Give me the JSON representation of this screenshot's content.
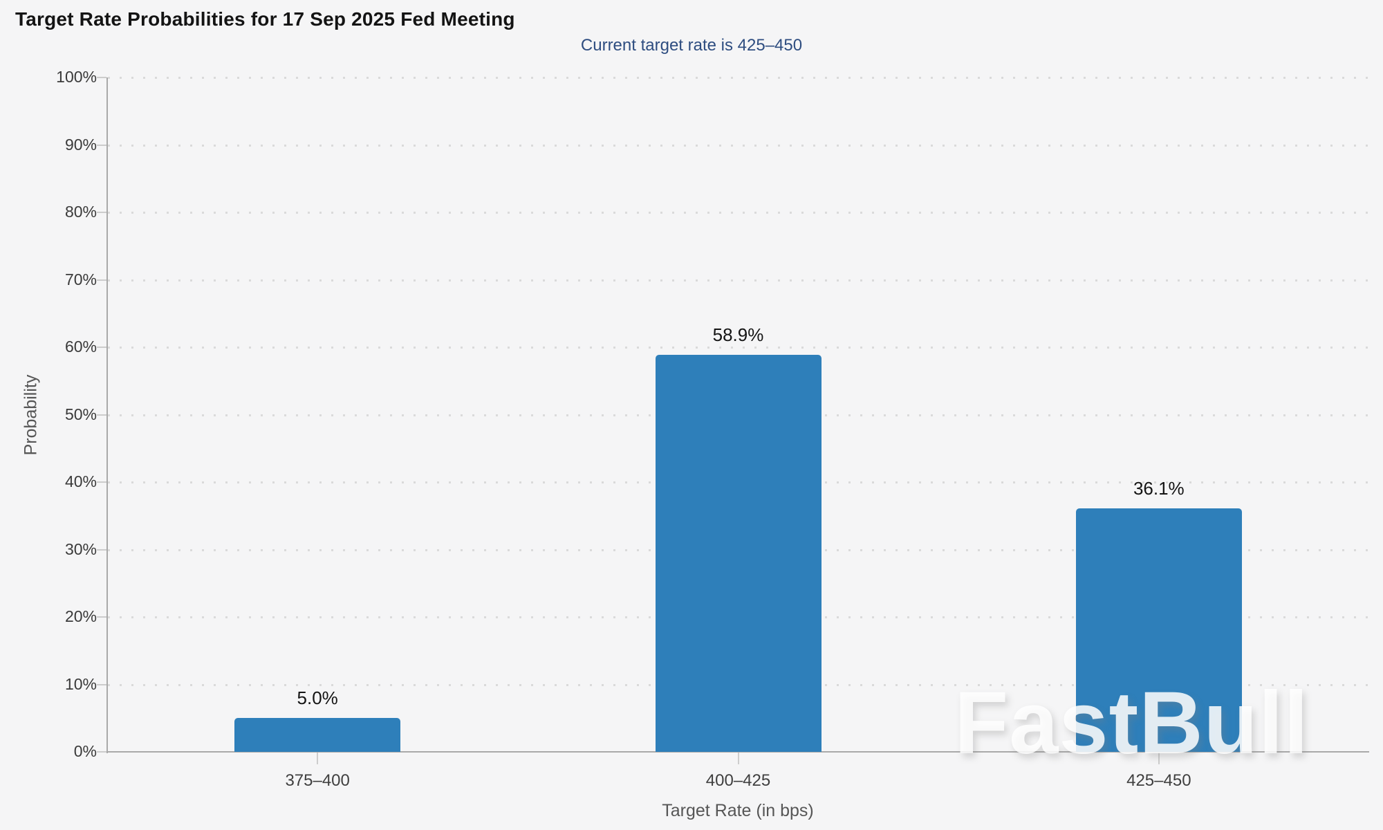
{
  "chart": {
    "title": "Target Rate Probabilities for 17 Sep 2025 Fed Meeting",
    "subtitle": "Current target rate is 425–450",
    "xlabel": "Target Rate (in bps)",
    "ylabel": "Probability"
  },
  "watermark": {
    "text": "FastBull"
  },
  "colors": {
    "bar": "#2e7fba",
    "subtitle_text": "#2e4d80",
    "background": "#f5f5f6",
    "axis_line": "#a9a9a9",
    "gridline_dots": "#dadada",
    "watermark_over_bar": "#b9d3e7"
  },
  "chart_data": {
    "type": "bar",
    "title": "Target Rate Probabilities for 17 Sep 2025 Fed Meeting",
    "subtitle": "Current target rate is 425–450",
    "categories": [
      "375–400",
      "400–425",
      "425–450"
    ],
    "values": [
      5.0,
      58.9,
      36.1
    ],
    "value_labels": [
      "5.0%",
      "58.9%",
      "36.1%"
    ],
    "series": [
      {
        "name": "Probability",
        "values": [
          5.0,
          58.9,
          36.1
        ]
      }
    ],
    "xlabel": "Target Rate (in bps)",
    "ylabel": "Probability",
    "ylim": [
      0,
      100
    ],
    "yticks": [
      0,
      10,
      20,
      30,
      40,
      50,
      60,
      70,
      80,
      90,
      100
    ],
    "ytick_labels": [
      "0%",
      "10%",
      "20%",
      "30%",
      "40%",
      "50%",
      "60%",
      "70%",
      "80%",
      "90%",
      "100%"
    ],
    "grid": "horizontal dotted lines at each 10%",
    "legend": "none",
    "bar_color": "#2e7fba"
  }
}
